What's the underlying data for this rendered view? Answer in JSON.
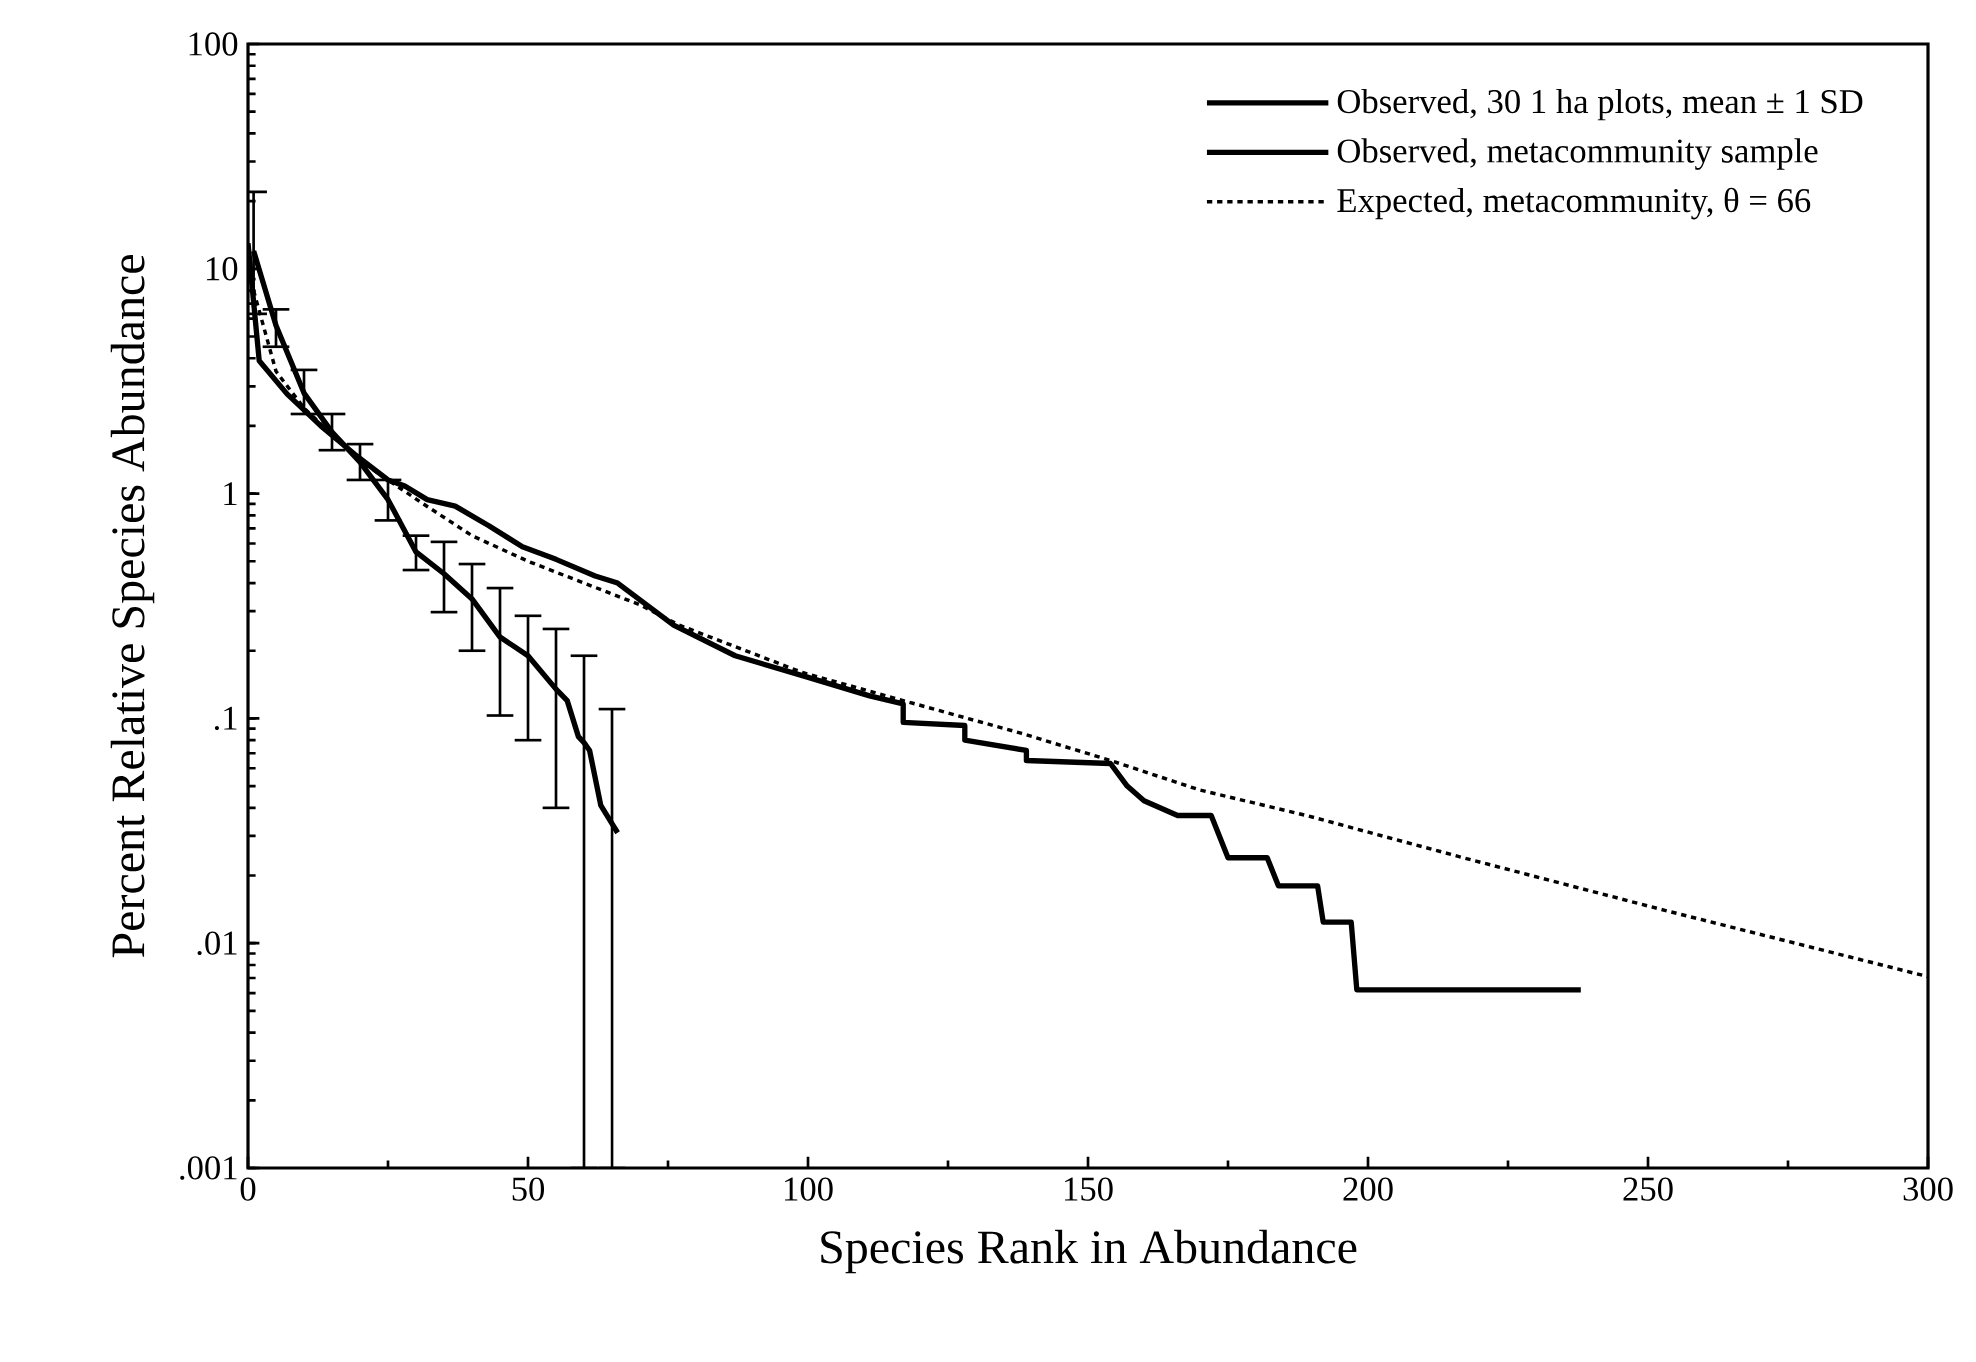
{
  "chart_data": {
    "type": "line",
    "xlabel": "Species Rank in Abundance",
    "ylabel": "Percent Relative Species Abundance",
    "log": "y",
    "xlim": [
      0,
      300
    ],
    "ylim": [
      0.001,
      100
    ],
    "xticks": [
      0,
      50,
      100,
      150,
      200,
      250,
      300
    ],
    "yticks": [
      {
        "value": 0.001,
        "label": ".001"
      },
      {
        "value": 0.01,
        "label": ".01"
      },
      {
        "value": 0.1,
        "label": ".1"
      },
      {
        "value": 1,
        "label": "1"
      },
      {
        "value": 10,
        "label": "10"
      },
      {
        "value": 100,
        "label": "100"
      }
    ],
    "legend": "top right",
    "series": [
      {
        "name": "Observed, 30 1 ha  plots, mean ± 1 SD",
        "color": "#000000",
        "line_style": "solid",
        "x": [
          1,
          5,
          10,
          15,
          20,
          25,
          30,
          35,
          40,
          45,
          50,
          55,
          57,
          59,
          60,
          61,
          63,
          65,
          66
        ],
        "values": [
          12,
          5.6,
          2.8,
          1.88,
          1.38,
          0.94,
          0.55,
          0.44,
          0.34,
          0.23,
          0.19,
          0.135,
          0.12,
          0.083,
          0.078,
          0.072,
          0.041,
          0.034,
          0.031
        ],
        "errors": [
          [
            6.3,
            22
          ],
          [
            4.5,
            6.6
          ],
          [
            2.26,
            3.55
          ],
          [
            1.56,
            2.26
          ],
          [
            1.15,
            1.66
          ],
          [
            0.76,
            1.15
          ],
          [
            0.457,
            0.65
          ],
          [
            0.297,
            0.61
          ],
          [
            0.2,
            0.486
          ],
          [
            0.103,
            0.38
          ],
          [
            0.08,
            0.286
          ],
          [
            0.04,
            0.25
          ],
          null,
          null,
          [
            0.001,
            0.19
          ],
          null,
          null,
          [
            0.001,
            0.11
          ],
          null
        ]
      },
      {
        "name": "Observed, metacommunity sample",
        "color": "#000000",
        "line_style": "solid",
        "x": [
          0,
          2,
          7,
          13,
          19,
          25,
          28,
          32,
          37,
          43,
          49,
          55,
          62,
          66,
          76,
          87,
          99,
          111,
          117,
          117,
          128,
          128,
          139,
          139,
          154,
          157,
          160,
          166,
          172,
          175,
          182,
          184,
          191,
          192,
          197,
          198,
          238
        ],
        "values": [
          13,
          3.9,
          2.77,
          2.0,
          1.5,
          1.15,
          1.08,
          0.94,
          0.88,
          0.72,
          0.58,
          0.51,
          0.43,
          0.4,
          0.26,
          0.19,
          0.155,
          0.126,
          0.116,
          0.096,
          0.093,
          0.08,
          0.072,
          0.065,
          0.063,
          0.05,
          0.043,
          0.037,
          0.037,
          0.024,
          0.024,
          0.018,
          0.018,
          0.0124,
          0.0124,
          0.0062,
          0.0062
        ]
      },
      {
        "name": "Expected, metacommunity, θ = 66",
        "color": "#000000",
        "line_style": "dotted",
        "x": [
          1,
          5,
          10,
          20,
          31,
          40,
          50,
          60,
          70,
          77,
          99,
          117,
          138,
          154,
          170,
          189,
          217,
          253,
          300
        ],
        "values": [
          8,
          3.5,
          2.4,
          1.4,
          0.91,
          0.65,
          0.5,
          0.4,
          0.32,
          0.26,
          0.16,
          0.12,
          0.086,
          0.065,
          0.048,
          0.037,
          0.024,
          0.014,
          0.0071
        ]
      }
    ]
  }
}
